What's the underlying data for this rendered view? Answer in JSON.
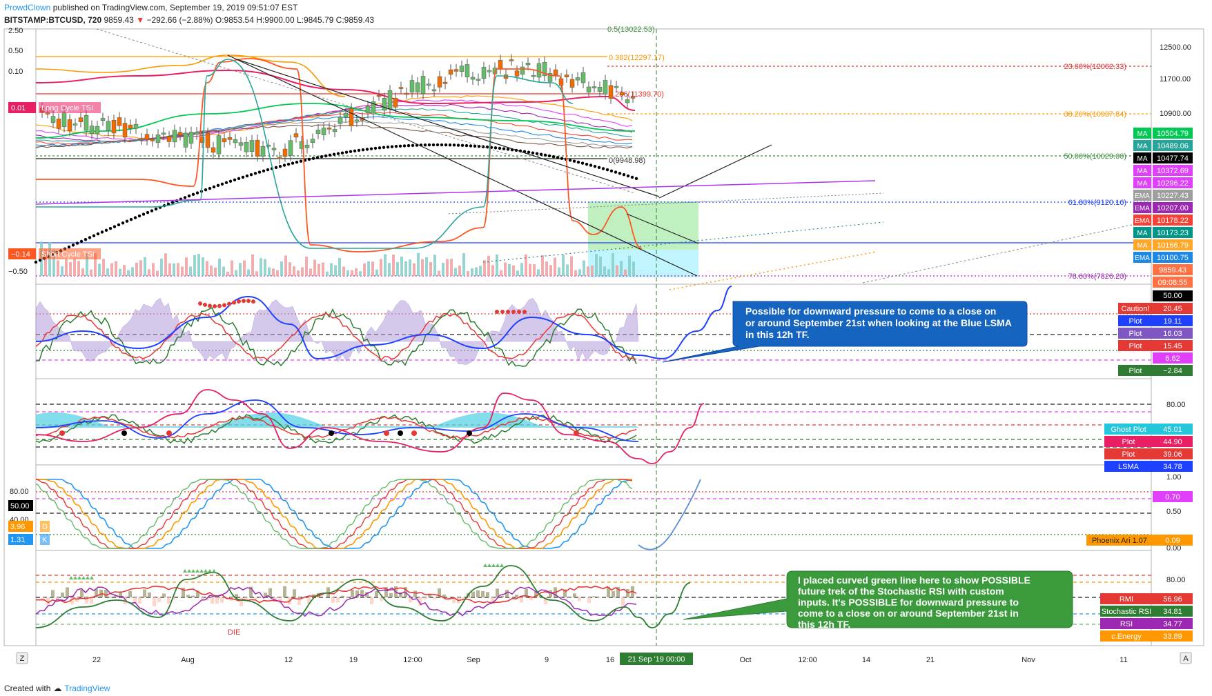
{
  "header": {
    "author": "ProwdClown",
    "published_text": "published on TradingView.com, September 19, 2019 09:51:07 EST",
    "symbol": "BITSTAMP:BTCUSD, 720",
    "last": "9859.43",
    "change": "−292.66 (−2.88%)",
    "ohlc": "O:9853.54 H:9900.00 L:9845.79 C:9859.43"
  },
  "footer": {
    "created_with": "Created with",
    "brand": "TradingView"
  },
  "axis_buttons": {
    "left": "Z",
    "right": "A"
  },
  "chart_data": [
    {
      "type": "line",
      "title": "BITSTAMP:BTCUSD, 720",
      "y_ticks": [
        "12500.00",
        "11700.00",
        "10900.00"
      ],
      "left_ticks": [
        "2.50",
        "0.50",
        "0.10",
        "−0.50"
      ],
      "left_labels": [
        {
          "text": "0.01",
          "name": "Long Cycle TSI",
          "color": "#e91e63"
        },
        {
          "text": "−0.14",
          "name": "Short Cycle TSI",
          "color": "#ff5722"
        }
      ],
      "fib_levels": [
        {
          "text": "23.60%(12062.33)",
          "color": "#e53935"
        },
        {
          "text": "38.20%(10937.84)",
          "color": "#ff9800"
        },
        {
          "text": "50.00%(10029.00)",
          "color": "#388e3c"
        },
        {
          "text": "61.80%(9120.16)",
          "color": "#1e40ff"
        },
        {
          "text": "78.60%(7826.23)",
          "color": "#9c27b0"
        },
        {
          "text": "0.382(12297.17)",
          "color": "#ff9800"
        },
        {
          "text": "0.236(11399.70)",
          "color": "#e53935"
        },
        {
          "text": "0(9948.98)",
          "color": "#333333"
        },
        {
          "text": "0.5(13022.53)",
          "color": "#388e3c"
        }
      ],
      "price_labels": [
        {
          "tag": "MA",
          "value": "10504.79",
          "color": "#00c853"
        },
        {
          "tag": "MA",
          "value": "10489.06",
          "color": "#26a69a"
        },
        {
          "tag": "MA",
          "value": "10477.74",
          "color": "#000000"
        },
        {
          "tag": "MA",
          "value": "10372.69",
          "color": "#e040fb"
        },
        {
          "tag": "MA",
          "value": "10296.22",
          "color": "#e040fb"
        },
        {
          "tag": "EMA",
          "value": "10227.43",
          "color": "#9e9e9e"
        },
        {
          "tag": "EMA",
          "value": "10207.00",
          "color": "#9c27b0"
        },
        {
          "tag": "EMA",
          "value": "10178.22",
          "color": "#f44336"
        },
        {
          "tag": "MA",
          "value": "10173.23",
          "color": "#009688"
        },
        {
          "tag": "MA",
          "value": "10166.79",
          "color": "#ffa726"
        },
        {
          "tag": "EMA",
          "value": "10100.75",
          "color": "#1e88e5"
        },
        {
          "tag": "",
          "value": "9859.43",
          "color": "#ff7043"
        },
        {
          "tag": "",
          "value": "09:08:55",
          "color": "#ff7043"
        }
      ]
    },
    {
      "type": "line",
      "title": "",
      "y_ticks": [
        "50.00"
      ],
      "labels": [
        {
          "tag": "Caution!",
          "value": "20.45",
          "color": "#e53935"
        },
        {
          "tag": "Plot",
          "value": "19.11",
          "color": "#1e40ff"
        },
        {
          "tag": "Plot",
          "value": "16.03",
          "color": "#7e57c2"
        },
        {
          "tag": "Plot",
          "value": "15.45",
          "color": "#e53935"
        },
        {
          "tag": "",
          "value": "6.62",
          "color": "#e040fb"
        },
        {
          "tag": "Plot",
          "value": "−2.84",
          "color": "#2e7d32"
        }
      ],
      "annotation": "Possible for downward pressure to come to a close on or around September 21st when looking at the Blue LSMA in this 12h TF."
    },
    {
      "type": "line",
      "title": "",
      "y_ticks": [
        "80.00"
      ],
      "labels": [
        {
          "tag": "Ghost Plot",
          "value": "45.01",
          "color": "#26c6da"
        },
        {
          "tag": "Plot",
          "value": "44.90",
          "color": "#e91e63"
        },
        {
          "tag": "Plot",
          "value": "39.06",
          "color": "#e53935"
        },
        {
          "tag": "LSMA",
          "value": "34.78",
          "color": "#1e40ff"
        }
      ]
    },
    {
      "type": "line",
      "title": "",
      "y_ticks": [
        "1.00",
        "0.50",
        "0.00"
      ],
      "left_ticks": [
        "80.00",
        "40.00"
      ],
      "left_labels": [
        {
          "text": "50.00",
          "color": "#000000"
        },
        {
          "text": "3.96",
          "tag": "D",
          "color": "#ff9800"
        },
        {
          "text": "1.31",
          "tag": "K",
          "color": "#2196f3"
        }
      ],
      "labels": [
        {
          "tag": "",
          "value": "0.70",
          "color": "#e040fb"
        },
        {
          "tag": "Phoenix Ari 1.07",
          "value": "0.09",
          "color": "#ff9800"
        }
      ]
    },
    {
      "type": "line",
      "title": "",
      "y_ticks": [
        "80.00"
      ],
      "labels": [
        {
          "tag": "RMI",
          "value": "56.96",
          "color": "#e53935"
        },
        {
          "tag": "Stochastic RSI",
          "value": "34.81",
          "color": "#2e7d32"
        },
        {
          "tag": "RSI",
          "value": "34.77",
          "color": "#9c27b0"
        },
        {
          "tag": "c.Energy",
          "value": "33.89",
          "color": "#ff9800"
        }
      ],
      "marker_text": "DIE",
      "annotation": "I placed curved green line here to show POSSIBLE future trek of the Stochastic RSI with custom inputs. It's POSSIBLE for downward pressure to come to a close on or around September 21st in this 12h TF."
    }
  ],
  "time_axis": {
    "ticks": [
      "22",
      "Aug",
      "12",
      "19",
      "12:00",
      "Sep",
      "9",
      "16",
      "Oct",
      "12:00",
      "14",
      "21",
      "Nov",
      "11"
    ],
    "cursor_label": "21 Sep '19   00:00"
  }
}
